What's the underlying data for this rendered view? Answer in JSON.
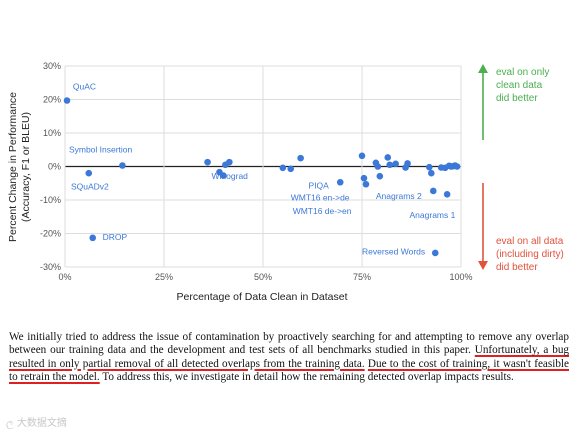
{
  "chart_data": {
    "type": "scatter",
    "xlabel": "Percentage of Data Clean in Dataset",
    "ylabel": [
      "Percent Change in Performance",
      "(Accuracy, F1 or BLEU)"
    ],
    "xlim": [
      0,
      100
    ],
    "ylim": [
      -30,
      30
    ],
    "x_ticks": [
      {
        "value": 0,
        "label": "0%"
      },
      {
        "value": 25,
        "label": "25%"
      },
      {
        "value": 50,
        "label": "50%"
      },
      {
        "value": 75,
        "label": "75%"
      },
      {
        "value": 100,
        "label": "100%"
      }
    ],
    "y_ticks": [
      {
        "value": 30,
        "label": "30%"
      },
      {
        "value": 20,
        "label": "20%"
      },
      {
        "value": 10,
        "label": "10%"
      },
      {
        "value": 0,
        "label": "0%"
      },
      {
        "value": -10,
        "label": "-10%"
      },
      {
        "value": -20,
        "label": "-20%"
      },
      {
        "value": -30,
        "label": "-30%"
      }
    ],
    "grid": true,
    "legend": "none",
    "point_color": "#3c78d8",
    "points": [
      {
        "x": 0.5,
        "y": 19.7
      },
      {
        "x": 6,
        "y": -2
      },
      {
        "x": 7,
        "y": -21.3
      },
      {
        "x": 14.5,
        "y": 0.3
      },
      {
        "x": 36,
        "y": 1.3
      },
      {
        "x": 39,
        "y": -1.7
      },
      {
        "x": 40,
        "y": -2.7
      },
      {
        "x": 40.5,
        "y": 0.5
      },
      {
        "x": 41.5,
        "y": 1.3
      },
      {
        "x": 55,
        "y": -0.4
      },
      {
        "x": 57,
        "y": -0.7
      },
      {
        "x": 59.5,
        "y": 2.5
      },
      {
        "x": 69.5,
        "y": -4.7
      },
      {
        "x": 75,
        "y": 3.2
      },
      {
        "x": 75.5,
        "y": -3.5
      },
      {
        "x": 76,
        "y": -5.3
      },
      {
        "x": 78.5,
        "y": 1.1
      },
      {
        "x": 79,
        "y": 0
      },
      {
        "x": 79.5,
        "y": -2.9
      },
      {
        "x": 81.5,
        "y": 2.7
      },
      {
        "x": 82,
        "y": 0.5
      },
      {
        "x": 83.5,
        "y": 0.8
      },
      {
        "x": 86,
        "y": -0.3
      },
      {
        "x": 86.5,
        "y": 0.9
      },
      {
        "x": 92,
        "y": -0.2
      },
      {
        "x": 92.5,
        "y": -2
      },
      {
        "x": 93,
        "y": -7.3
      },
      {
        "x": 93.5,
        "y": -25.8
      },
      {
        "x": 95,
        "y": -0.3
      },
      {
        "x": 96,
        "y": -0.4
      },
      {
        "x": 96.5,
        "y": -8.3
      },
      {
        "x": 97,
        "y": 0.2
      },
      {
        "x": 97.5,
        "y": 0
      },
      {
        "x": 98,
        "y": 0.1
      },
      {
        "x": 98.5,
        "y": 0.3
      },
      {
        "x": 99,
        "y": 0
      }
    ],
    "annotations": [
      {
        "text": "QuAC",
        "x": 2,
        "y": 23,
        "anchor": "start"
      },
      {
        "text": "Symbol Insertion",
        "x": 1,
        "y": 4.2,
        "anchor": "start"
      },
      {
        "text": "SQuADv2",
        "x": 1.5,
        "y": -6.8,
        "anchor": "start"
      },
      {
        "text": "DROP",
        "x": 9.5,
        "y": -22,
        "anchor": "start"
      },
      {
        "text": "Winograd",
        "x": 37,
        "y": -3.8,
        "anchor": "start"
      },
      {
        "text": "PIQA",
        "x": 61.5,
        "y": -6.6,
        "anchor": "start"
      },
      {
        "text": "WMT16 en->de",
        "x": 57,
        "y": -10.2,
        "anchor": "start"
      },
      {
        "text": "WMT16 de->en",
        "x": 57.5,
        "y": -14.2,
        "anchor": "start"
      },
      {
        "text": "Anagrams 2",
        "x": 78.5,
        "y": -9.7,
        "anchor": "start"
      },
      {
        "text": "Anagrams 1",
        "x": 87,
        "y": -15.3,
        "anchor": "start"
      },
      {
        "text": "Reversed Words",
        "x": 75,
        "y": -26.3,
        "anchor": "start"
      }
    ]
  },
  "side_notes": {
    "better_clean": {
      "lines": [
        "eval on only",
        "clean data",
        "did better"
      ],
      "color": "#4caf50"
    },
    "better_all": {
      "lines": [
        "eval on all data",
        "(including dirty)",
        "did better"
      ],
      "color": "#e0533c"
    }
  },
  "caption": {
    "part1": "We initially tried to address the issue of contamination by proactively searching for and attempting to remove any overlap between our training data and the development and test sets of all benchmarks studied in this paper. ",
    "highlight1": "Unfortunately, a bug resulted in only partial removal of all detected overlaps from the training data.",
    "part2": " ",
    "highlight2": "Due to the cost of training, it wasn't feasible to retrain the model.",
    "part3": " To address this, we investigate in detail how the remaining detected overlap impacts results.",
    "highlight_color": "#e02020"
  },
  "watermark": "大数据文摘"
}
